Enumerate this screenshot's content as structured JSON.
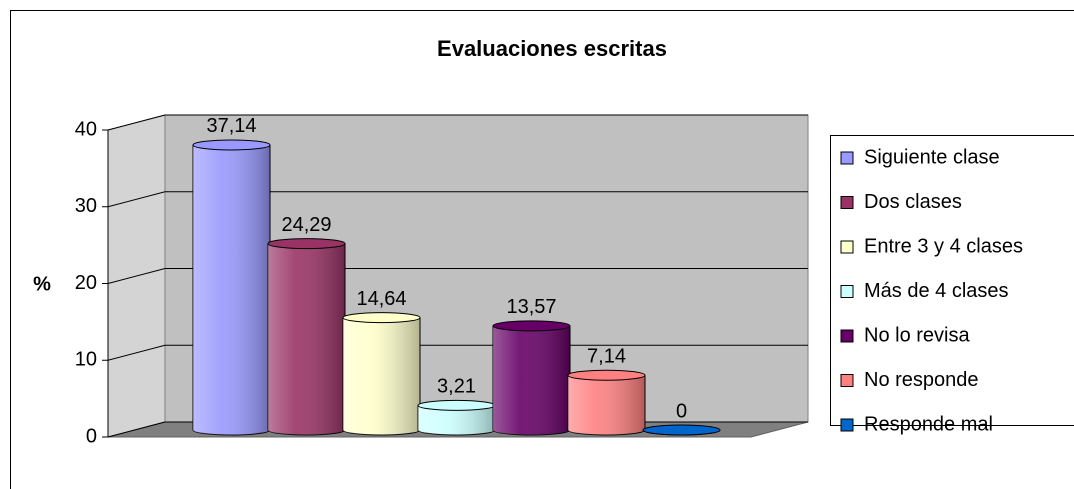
{
  "chart_data": {
    "type": "bar3d",
    "title": "Evaluaciones escritas",
    "y_label": "%",
    "series": [
      {
        "name": "Siguiente clase",
        "color": "#9999ff",
        "values": [
          37.14
        ],
        "value_labels": [
          "37,14"
        ]
      },
      {
        "name": "Dos clases",
        "color": "#993366",
        "values": [
          24.29
        ],
        "value_labels": [
          "24,29"
        ]
      },
      {
        "name": "Entre 3 y 4 clases",
        "color": "#ffffcc",
        "values": [
          14.64
        ],
        "value_labels": [
          "14,64"
        ]
      },
      {
        "name": "Más de 4 clases",
        "color": "#ccffff",
        "values": [
          3.21
        ],
        "value_labels": [
          "3,21"
        ]
      },
      {
        "name": "No lo revisa",
        "color": "#660066",
        "values": [
          13.57
        ],
        "value_labels": [
          "13,57"
        ]
      },
      {
        "name": "No responde",
        "color": "#ff8080",
        "values": [
          7.14
        ],
        "value_labels": [
          "7,14"
        ]
      },
      {
        "name": "Responde mal",
        "color": "#0066cc",
        "values": [
          0
        ]
      }
    ],
    "ylim": [
      0,
      40
    ],
    "yticks": [
      0,
      10,
      20,
      30,
      40
    ],
    "grid": true,
    "legend": "right"
  }
}
